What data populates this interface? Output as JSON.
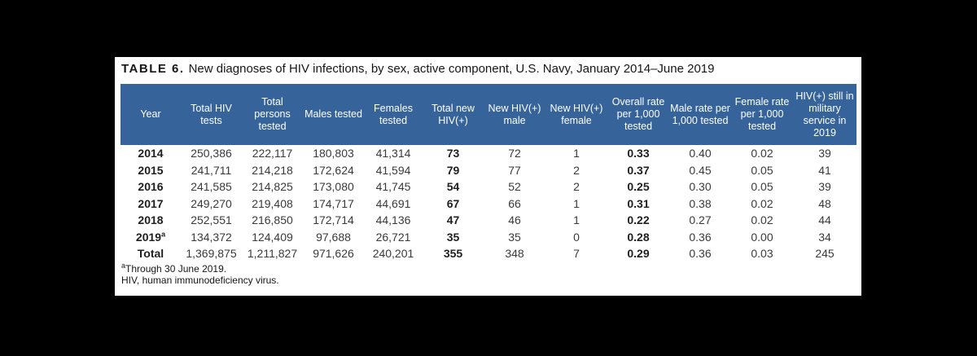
{
  "colors": {
    "page_bg": "#000000",
    "panel_bg": "#ffffff",
    "header_bg": "#35639A",
    "header_text": "#ffffff",
    "body_text": "#3a3a3a",
    "bold_text": "#1f1f1f"
  },
  "table": {
    "label": "TABLE 6.",
    "title": "New diagnoses of HIV infections, by sex, active component, U.S. Navy, January 2014–June 2019",
    "columns": [
      "Year",
      "Total HIV tests",
      "Total persons tested",
      "Males tested",
      "Females tested",
      "Total new HIV(+)",
      "New HIV(+) male",
      "New HIV(+) female",
      "Overall rate per 1,000 tested",
      "Male rate per 1,000 tested",
      "Female rate per 1,000 tested",
      "HIV(+) still in military service in 2019"
    ],
    "rows": [
      {
        "year": "2014",
        "year_sup": "",
        "values": [
          "250,386",
          "222,117",
          "180,803",
          "41,314",
          "73",
          "72",
          "1",
          "0.33",
          "0.40",
          "0.02",
          "39"
        ]
      },
      {
        "year": "2015",
        "year_sup": "",
        "values": [
          "241,711",
          "214,218",
          "172,624",
          "41,594",
          "79",
          "77",
          "2",
          "0.37",
          "0.45",
          "0.05",
          "41"
        ]
      },
      {
        "year": "2016",
        "year_sup": "",
        "values": [
          "241,585",
          "214,825",
          "173,080",
          "41,745",
          "54",
          "52",
          "2",
          "0.25",
          "0.30",
          "0.05",
          "39"
        ]
      },
      {
        "year": "2017",
        "year_sup": "",
        "values": [
          "249,270",
          "219,408",
          "174,717",
          "44,691",
          "67",
          "66",
          "1",
          "0.31",
          "0.38",
          "0.02",
          "48"
        ]
      },
      {
        "year": "2018",
        "year_sup": "",
        "values": [
          "252,551",
          "216,850",
          "172,714",
          "44,136",
          "47",
          "46",
          "1",
          "0.22",
          "0.27",
          "0.02",
          "44"
        ]
      },
      {
        "year": "2019",
        "year_sup": "a",
        "values": [
          "134,372",
          "124,409",
          "97,688",
          "26,721",
          "35",
          "35",
          "0",
          "0.28",
          "0.36",
          "0.00",
          "34"
        ]
      },
      {
        "year": "Total",
        "year_sup": "",
        "values": [
          "1,369,875",
          "1,211,827",
          "971,626",
          "240,201",
          "355",
          "348",
          "7",
          "0.29",
          "0.36",
          "0.03",
          "245"
        ]
      }
    ]
  },
  "footnotes": [
    {
      "marker": "a",
      "text": "Through 30 June 2019."
    },
    {
      "marker": "",
      "text": "HIV, human immunodeficiency virus."
    }
  ]
}
